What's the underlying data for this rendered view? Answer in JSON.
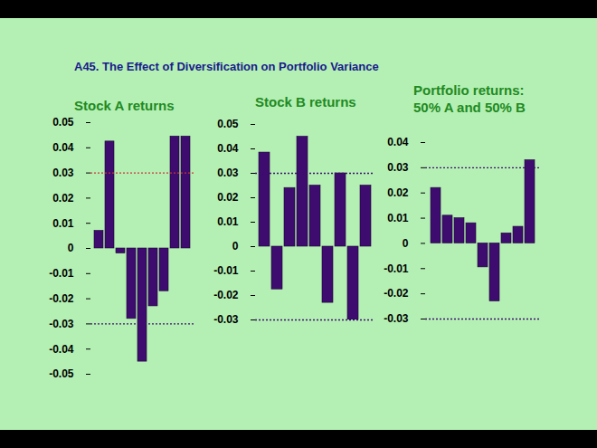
{
  "title": "A45.  The Effect of Diversification on Portfolio Variance",
  "chart_data": [
    {
      "type": "bar",
      "title": "Stock A returns",
      "categories": [
        null,
        null,
        null,
        null,
        null,
        null,
        null,
        null,
        null
      ],
      "values": [
        0.007,
        0.0425,
        -0.002,
        -0.028,
        -0.045,
        -0.023,
        -0.017,
        0.0445,
        0.0445
      ],
      "color": "#3d0c6e",
      "ylim": [
        -0.05,
        0.05
      ],
      "yticks": [
        -0.05,
        -0.04,
        -0.03,
        -0.02,
        -0.01,
        0,
        0.01,
        0.02,
        0.03,
        0.04,
        0.05
      ],
      "tick_labels": "y",
      "reference_lines": [
        {
          "value": 0.03,
          "color": "#cc3333"
        },
        {
          "value": -0.03,
          "color": "#3d0c6e"
        }
      ]
    },
    {
      "type": "bar",
      "title": "Stock B returns",
      "categories": [
        null,
        null,
        null,
        null,
        null,
        null,
        null,
        null,
        null
      ],
      "values": [
        0.0385,
        -0.0175,
        0.024,
        0.045,
        0.025,
        -0.023,
        0.03,
        -0.03,
        0.025
      ],
      "color": "#3d0c6e",
      "ylim": [
        -0.03,
        0.05
      ],
      "yticks": [
        -0.03,
        -0.02,
        -0.01,
        0,
        0.01,
        0.02,
        0.03,
        0.04,
        0.05
      ],
      "tick_labels": "y",
      "reference_lines": [
        {
          "value": 0.03,
          "color": "#3d0c6e"
        },
        {
          "value": -0.03,
          "color": "#3d0c6e"
        }
      ]
    },
    {
      "type": "bar",
      "title": "Portfolio returns:\n50% A and 50% B",
      "categories": [
        null,
        null,
        null,
        null,
        null,
        null,
        null,
        null,
        null
      ],
      "values": [
        0.022,
        0.011,
        0.01,
        0.008,
        -0.0095,
        -0.023,
        0.004,
        0.0066,
        0.033
      ],
      "color": "#3d0c6e",
      "ylim": [
        -0.03,
        0.04
      ],
      "yticks": [
        -0.03,
        -0.02,
        -0.01,
        0,
        0.01,
        0.02,
        0.03,
        0.04
      ],
      "tick_labels": "y",
      "reference_lines": [
        {
          "value": 0.03,
          "color": "#3d0c6e"
        },
        {
          "value": -0.03,
          "color": "#3d0c6e"
        }
      ]
    }
  ]
}
